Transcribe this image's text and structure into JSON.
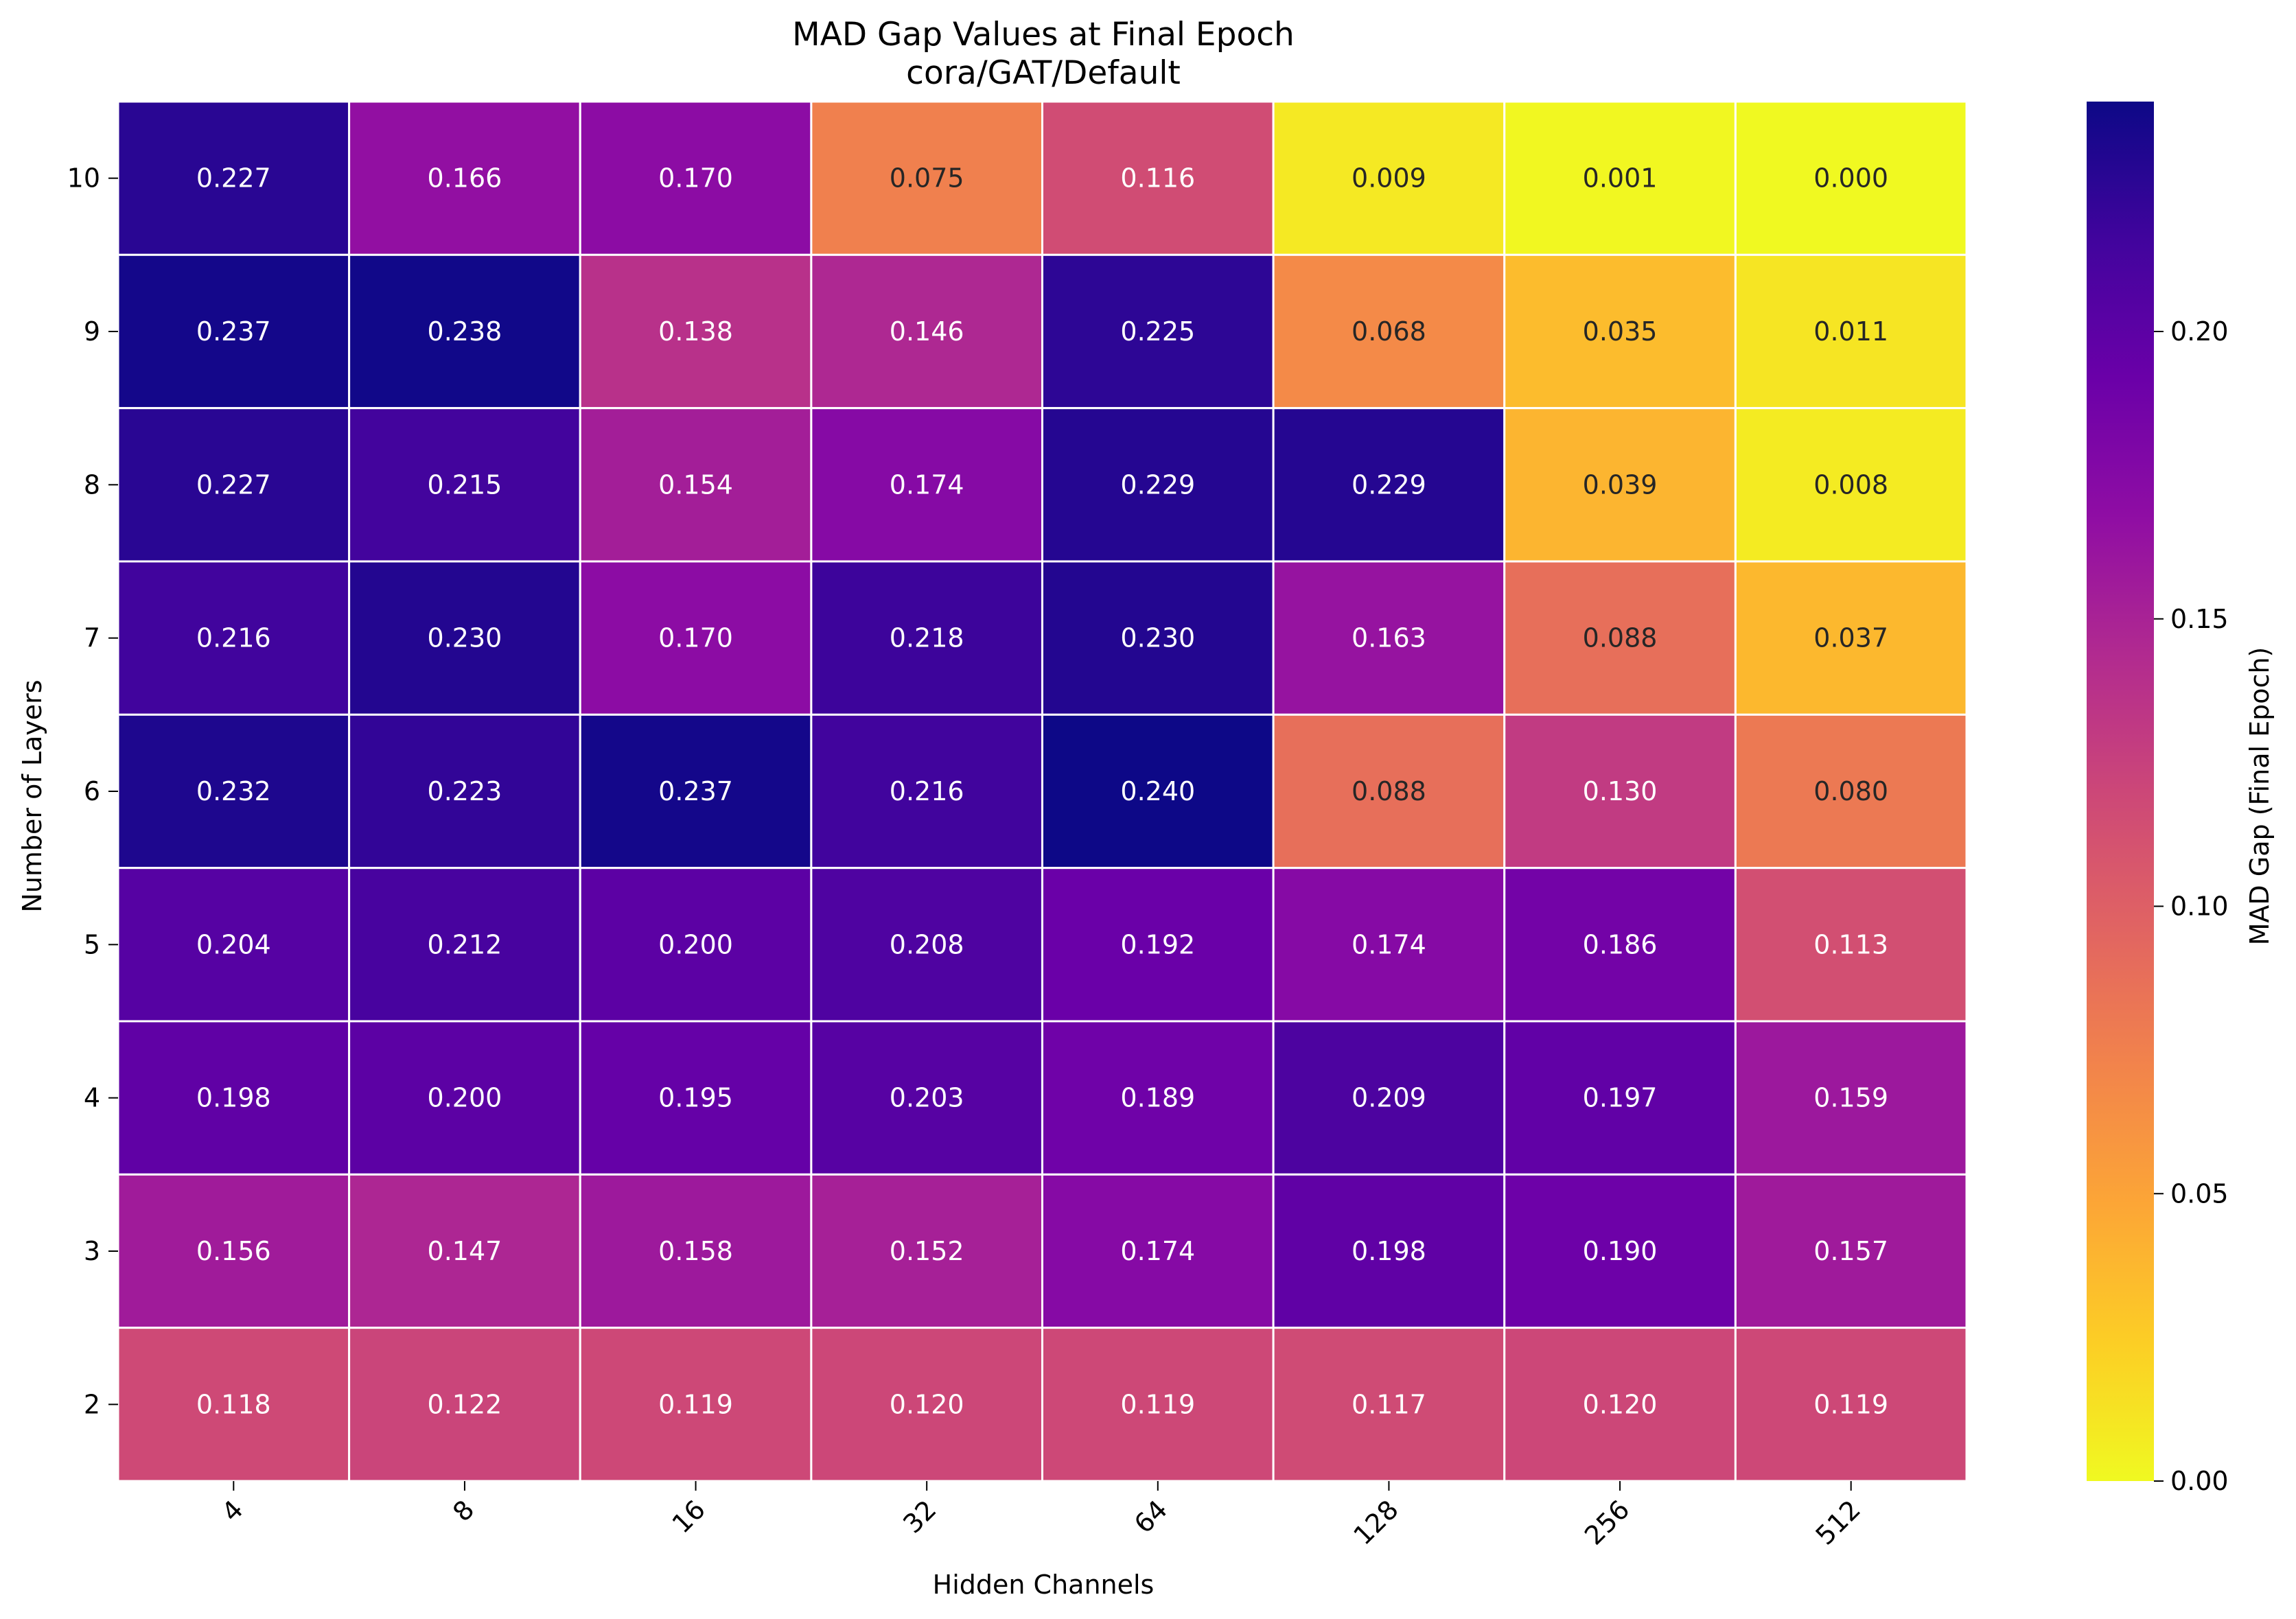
{
  "chart_data": {
    "type": "heatmap",
    "title": "MAD Gap Values at Final Epoch",
    "subtitle": "cora/GAT/Default",
    "xlabel": "Hidden Channels",
    "ylabel": "Number of Layers",
    "x_categories": [
      "4",
      "8",
      "16",
      "32",
      "64",
      "128",
      "256",
      "512"
    ],
    "y_categories": [
      "10",
      "9",
      "8",
      "7",
      "6",
      "5",
      "4",
      "3",
      "2"
    ],
    "values": [
      [
        0.227,
        0.166,
        0.17,
        0.075,
        0.116,
        0.009,
        0.001,
        0.0
      ],
      [
        0.237,
        0.238,
        0.138,
        0.146,
        0.225,
        0.068,
        0.035,
        0.011
      ],
      [
        0.227,
        0.215,
        0.154,
        0.174,
        0.229,
        0.229,
        0.039,
        0.008
      ],
      [
        0.216,
        0.23,
        0.17,
        0.218,
        0.23,
        0.163,
        0.088,
        0.037
      ],
      [
        0.232,
        0.223,
        0.237,
        0.216,
        0.24,
        0.088,
        0.13,
        0.08
      ],
      [
        0.204,
        0.212,
        0.2,
        0.208,
        0.192,
        0.174,
        0.186,
        0.113
      ],
      [
        0.198,
        0.2,
        0.195,
        0.203,
        0.189,
        0.209,
        0.197,
        0.159
      ],
      [
        0.156,
        0.147,
        0.158,
        0.152,
        0.174,
        0.198,
        0.19,
        0.157
      ],
      [
        0.118,
        0.122,
        0.119,
        0.12,
        0.119,
        0.117,
        0.12,
        0.119
      ]
    ],
    "value_labels": [
      [
        "0.227",
        "0.166",
        "0.170",
        "0.075",
        "0.116",
        "0.009",
        "0.001",
        "0.000"
      ],
      [
        "0.237",
        "0.238",
        "0.138",
        "0.146",
        "0.225",
        "0.068",
        "0.035",
        "0.011"
      ],
      [
        "0.227",
        "0.215",
        "0.154",
        "0.174",
        "0.229",
        "0.229",
        "0.039",
        "0.008"
      ],
      [
        "0.216",
        "0.230",
        "0.170",
        "0.218",
        "0.230",
        "0.163",
        "0.088",
        "0.037"
      ],
      [
        "0.232",
        "0.223",
        "0.237",
        "0.216",
        "0.240",
        "0.088",
        "0.130",
        "0.080"
      ],
      [
        "0.204",
        "0.212",
        "0.200",
        "0.208",
        "0.192",
        "0.174",
        "0.186",
        "0.113"
      ],
      [
        "0.198",
        "0.200",
        "0.195",
        "0.203",
        "0.189",
        "0.209",
        "0.197",
        "0.159"
      ],
      [
        "0.156",
        "0.147",
        "0.158",
        "0.152",
        "0.174",
        "0.198",
        "0.190",
        "0.157"
      ],
      [
        "0.118",
        "0.122",
        "0.119",
        "0.120",
        "0.119",
        "0.117",
        "0.120",
        "0.119"
      ]
    ],
    "colormap": "plasma_r",
    "vmin": 0.0,
    "vmax": 0.24,
    "colorbar": {
      "label": "MAD Gap (Final Epoch)",
      "ticks": [
        0.0,
        0.05,
        0.1,
        0.15,
        0.2
      ],
      "tick_labels": [
        "0.00",
        "0.05",
        "0.10",
        "0.15",
        "0.20"
      ]
    },
    "cell_border_color": "#ffffff",
    "legend_placement": "right"
  }
}
